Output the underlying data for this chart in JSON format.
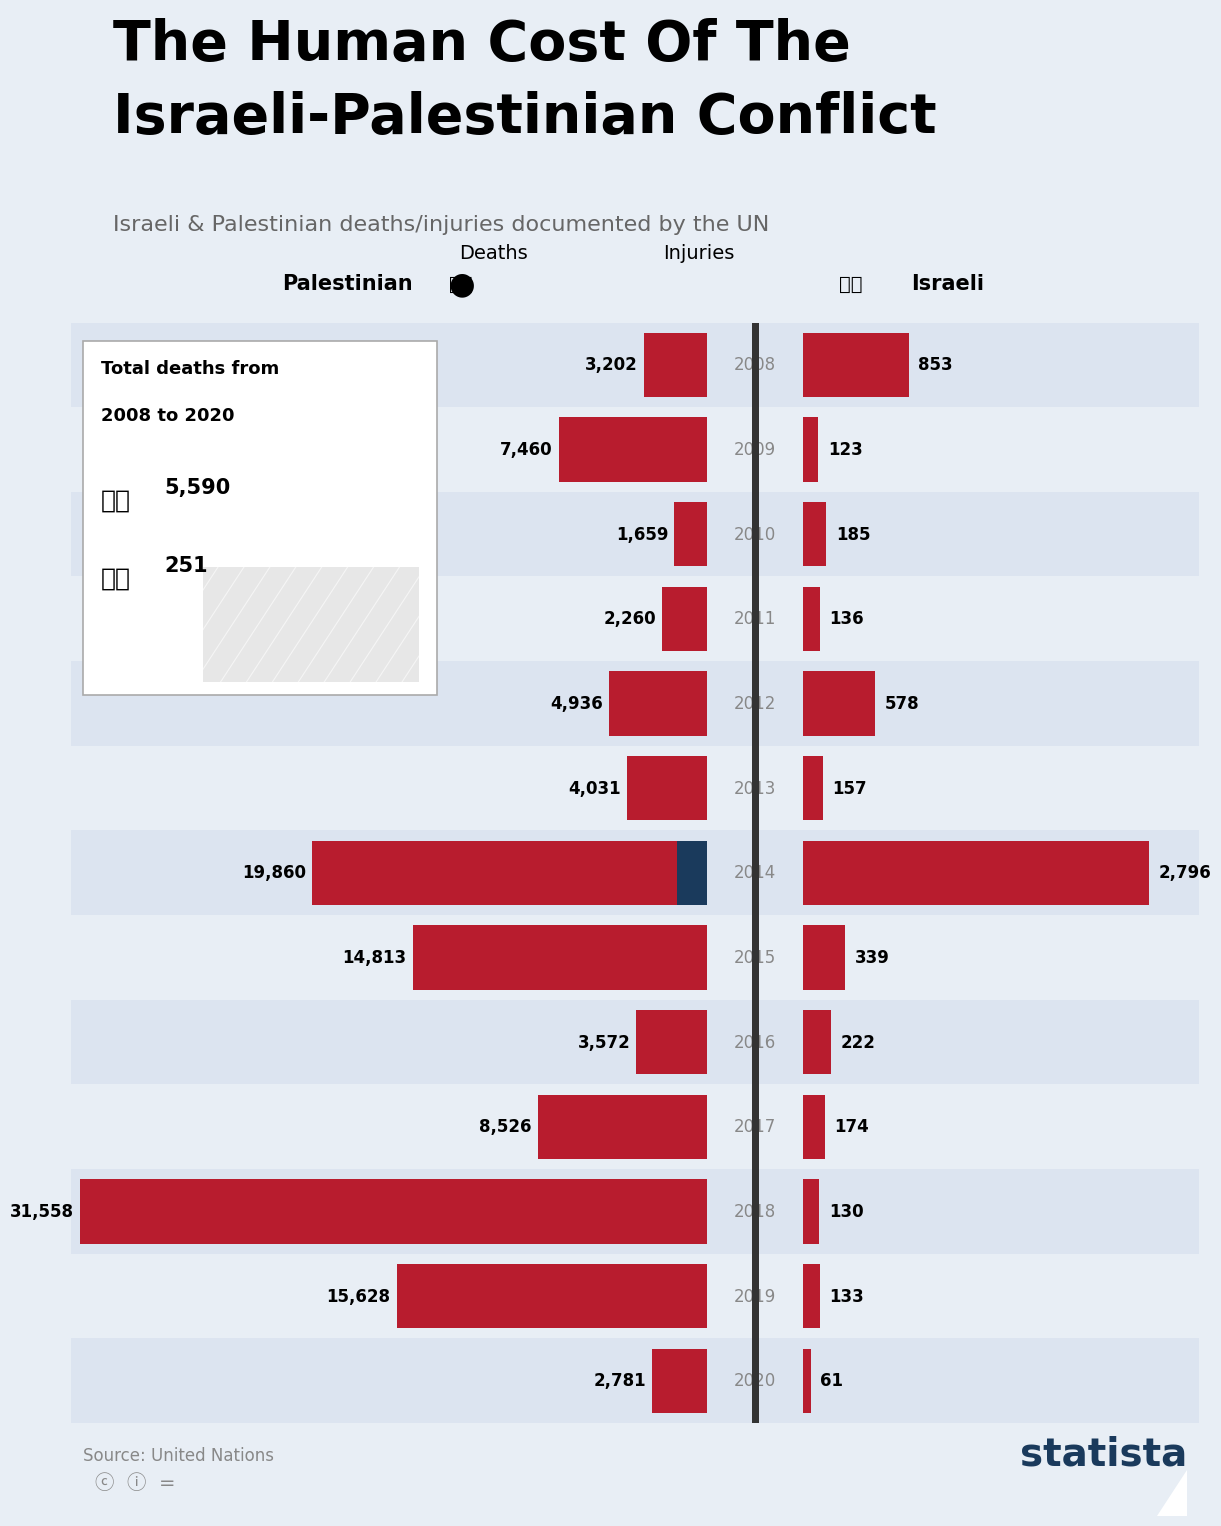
{
  "title_line1": "The Human Cost Of The",
  "title_line2": "Israeli-Palestinian Conflict",
  "subtitle": "Israeli & Palestinian deaths/injuries documented by the UN",
  "title_bar_color": "#1a3a5c",
  "background_color": "#e8eef5",
  "row_colors": [
    "#dce4f0",
    "#e8eef5"
  ],
  "years": [
    2008,
    2009,
    2010,
    2011,
    2012,
    2013,
    2014,
    2015,
    2016,
    2017,
    2018,
    2019,
    2020
  ],
  "palestinian_injuries": [
    3202,
    7460,
    1659,
    2260,
    4936,
    4031,
    19860,
    14813,
    3572,
    8526,
    31558,
    15628,
    2781
  ],
  "israeli_injuries": [
    853,
    123,
    185,
    136,
    578,
    157,
    2796,
    339,
    222,
    174,
    130,
    133,
    61
  ],
  "injury_color": "#b81c2e",
  "death_color": "#1a3a5c",
  "year_color": "#888888",
  "source_text": "Source: United Nations",
  "total_deaths_pal": "5,590",
  "total_deaths_isr": "251",
  "legend_deaths_label": "Deaths",
  "legend_injuries_label": "Injuries",
  "pal_label": "Palestinian",
  "isr_label": "Israeli",
  "max_pal": 32000,
  "max_isr": 3200
}
